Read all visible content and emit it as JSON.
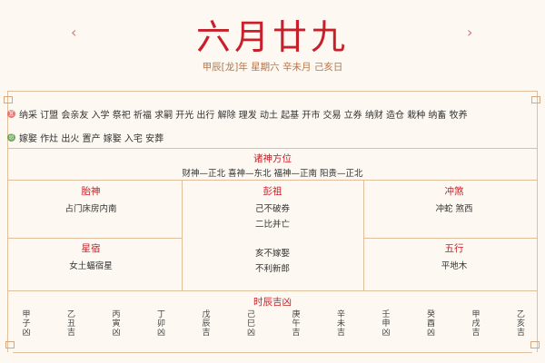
{
  "header": {
    "title": "六月廿九",
    "prev": "‹",
    "next": "›",
    "subtitle": "甲辰[龙]年 星期六 辛未月 己亥日"
  },
  "yi": {
    "icon": "宜",
    "items": "纳采 订盟 会亲友 入学 祭祀 祈福 求嗣 开光 出行 解除 理发 动土 起基 开市 交易 立券 纳财 造仓 栽种 纳畜 牧养"
  },
  "ji": {
    "icon": "忌",
    "items": "嫁娶 作灶 出火 置产 嫁娶 入宅 安葬"
  },
  "zhushen": {
    "title": "诸神方位",
    "text": "财神—正北 喜神—东北 福神—正南 阳贵—正北"
  },
  "taishen": {
    "title": "胎神",
    "text": "占门床房内南"
  },
  "pengzu": {
    "title": "彭祖",
    "lines": [
      "己不破券",
      "二比并亡",
      "亥不嫁娶",
      "不利新郎"
    ]
  },
  "chongsha": {
    "title": "冲煞",
    "text": "冲蛇 煞西"
  },
  "xingxiu": {
    "title": "星宿",
    "text": "女土蝠宿星"
  },
  "wuxing": {
    "title": "五行",
    "text": "平地木"
  },
  "shichen": {
    "title": "时辰吉凶",
    "hours": [
      "甲子凶",
      "乙丑吉",
      "丙寅凶",
      "丁卯凶",
      "戊辰吉",
      "己巳凶",
      "庚午吉",
      "辛未吉",
      "壬申凶",
      "癸酉凶",
      "甲戌吉",
      "乙亥吉"
    ]
  },
  "colors": {
    "accent": "#c8202a",
    "border": "#e2bf9c",
    "yi": "#e07a7a",
    "ji": "#6aaa5a"
  }
}
